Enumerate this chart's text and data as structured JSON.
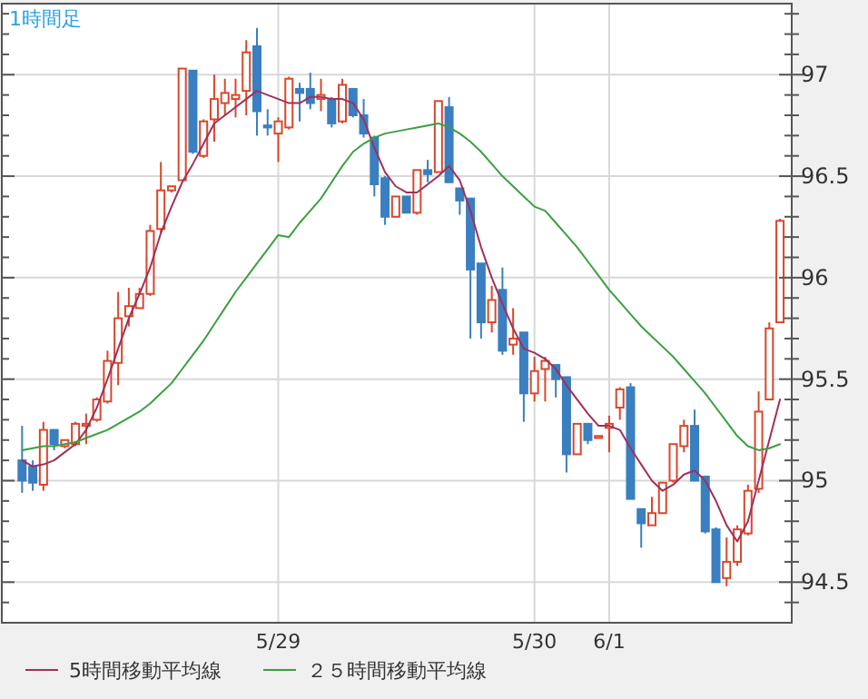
{
  "chart_data": {
    "type": "candlestick",
    "title": "1時間足",
    "categories": [
      null,
      null,
      null,
      null,
      null,
      null,
      null,
      null,
      null,
      null,
      null,
      null,
      null,
      null,
      null,
      null,
      null,
      null,
      null,
      null,
      null,
      null,
      null,
      null,
      "5/29",
      null,
      null,
      null,
      null,
      null,
      null,
      null,
      null,
      null,
      null,
      null,
      null,
      null,
      null,
      null,
      null,
      null,
      null,
      null,
      null,
      null,
      null,
      null,
      "5/30",
      null,
      null,
      null,
      null,
      null,
      null,
      "6/1",
      null,
      null,
      null,
      null,
      null,
      null,
      null,
      null,
      null,
      null,
      null,
      null,
      null,
      null,
      null,
      null
    ],
    "ohlc": [
      [
        95.1,
        95.27,
        94.94,
        95.0
      ],
      [
        95.07,
        95.1,
        94.95,
        94.99
      ],
      [
        94.98,
        95.29,
        94.95,
        95.25
      ],
      [
        95.25,
        95.25,
        95.15,
        95.18
      ],
      [
        95.17,
        95.2,
        95.16,
        95.2
      ],
      [
        95.18,
        95.29,
        95.17,
        95.28
      ],
      [
        95.27,
        95.33,
        95.18,
        95.28
      ],
      [
        95.3,
        95.41,
        95.29,
        95.4
      ],
      [
        95.39,
        95.64,
        95.38,
        95.59
      ],
      [
        95.58,
        95.93,
        95.47,
        95.8
      ],
      [
        95.81,
        95.95,
        95.76,
        95.86
      ],
      [
        95.85,
        95.95,
        95.85,
        95.92
      ],
      [
        95.92,
        96.26,
        95.91,
        96.23
      ],
      [
        96.24,
        96.57,
        96.22,
        96.43
      ],
      [
        96.43,
        96.45,
        96.42,
        96.45
      ],
      [
        96.48,
        97.03,
        96.48,
        97.03
      ],
      [
        97.02,
        97.02,
        96.61,
        96.62
      ],
      [
        96.6,
        96.78,
        96.59,
        96.77
      ],
      [
        96.78,
        97.0,
        96.67,
        96.88
      ],
      [
        96.86,
        96.98,
        96.8,
        96.91
      ],
      [
        96.88,
        96.98,
        96.79,
        96.9
      ],
      [
        96.92,
        97.17,
        96.8,
        97.11
      ],
      [
        97.14,
        97.23,
        96.7,
        96.82
      ],
      [
        96.75,
        96.83,
        96.7,
        96.74
      ],
      [
        96.71,
        96.79,
        96.57,
        96.77
      ],
      [
        96.74,
        96.99,
        96.73,
        96.98
      ],
      [
        96.93,
        96.96,
        96.77,
        96.91
      ],
      [
        96.93,
        97.01,
        96.83,
        96.86
      ],
      [
        96.88,
        96.98,
        96.82,
        96.9
      ],
      [
        96.88,
        96.89,
        96.74,
        96.76
      ],
      [
        96.77,
        96.98,
        96.76,
        96.95
      ],
      [
        96.93,
        96.93,
        96.79,
        96.8
      ],
      [
        96.8,
        96.88,
        96.69,
        96.71
      ],
      [
        96.69,
        96.7,
        96.4,
        96.46
      ],
      [
        96.49,
        96.5,
        96.26,
        96.3
      ],
      [
        96.3,
        96.4,
        96.3,
        96.4
      ],
      [
        96.4,
        96.4,
        96.32,
        96.32
      ],
      [
        96.32,
        96.53,
        96.31,
        96.53
      ],
      [
        96.53,
        96.58,
        96.47,
        96.51
      ],
      [
        96.52,
        96.87,
        96.52,
        96.87
      ],
      [
        96.84,
        96.89,
        96.47,
        96.47
      ],
      [
        96.44,
        96.44,
        96.31,
        96.38
      ],
      [
        96.39,
        96.39,
        95.7,
        96.04
      ],
      [
        96.07,
        96.07,
        95.7,
        95.78
      ],
      [
        95.78,
        95.96,
        95.73,
        95.89
      ],
      [
        95.94,
        96.05,
        95.62,
        95.64
      ],
      [
        95.67,
        95.85,
        95.62,
        95.7
      ],
      [
        95.73,
        95.73,
        95.29,
        95.43
      ],
      [
        95.43,
        95.61,
        95.39,
        95.54
      ],
      [
        95.55,
        95.61,
        95.39,
        95.59
      ],
      [
        95.57,
        95.57,
        95.41,
        95.5
      ],
      [
        95.51,
        95.51,
        95.04,
        95.13
      ],
      [
        95.13,
        95.28,
        95.13,
        95.28
      ],
      [
        95.28,
        95.28,
        95.18,
        95.2
      ],
      [
        95.21,
        95.22,
        95.21,
        95.22
      ],
      [
        95.26,
        95.32,
        95.14,
        95.28
      ],
      [
        95.36,
        95.46,
        95.3,
        95.45
      ],
      [
        95.46,
        95.48,
        94.91,
        94.91
      ],
      [
        94.86,
        94.86,
        94.67,
        94.79
      ],
      [
        94.78,
        94.92,
        94.78,
        94.84
      ],
      [
        94.84,
        94.99,
        94.84,
        94.99
      ],
      [
        95.0,
        95.18,
        94.99,
        95.18
      ],
      [
        95.17,
        95.3,
        95.14,
        95.27
      ],
      [
        95.27,
        95.35,
        95.0,
        95.0
      ],
      [
        95.02,
        95.02,
        94.74,
        94.75
      ],
      [
        94.76,
        94.77,
        94.5,
        94.5
      ],
      [
        94.52,
        94.72,
        94.48,
        94.6
      ],
      [
        94.6,
        94.78,
        94.58,
        94.76
      ],
      [
        94.74,
        94.98,
        94.73,
        94.95
      ],
      [
        94.96,
        95.44,
        94.94,
        95.34
      ],
      [
        95.4,
        95.78,
        95.4,
        95.75
      ],
      [
        95.78,
        96.29,
        95.78,
        96.28
      ]
    ],
    "colors": [
      "#3a7fc0",
      "#3a7fc0",
      "#d9472b",
      "#3a7fc0",
      "#d9472b",
      "#d9472b",
      "#d9472b",
      "#d9472b",
      "#d9472b",
      "#d9472b",
      "#d9472b",
      "#d9472b",
      "#d9472b",
      "#d9472b",
      "#d9472b",
      "#d9472b",
      "#3a7fc0",
      "#d9472b",
      "#d9472b",
      "#d9472b",
      "#d9472b",
      "#d9472b",
      "#3a7fc0",
      "#3a7fc0",
      "#d9472b",
      "#d9472b",
      "#3a7fc0",
      "#3a7fc0",
      "#d9472b",
      "#3a7fc0",
      "#d9472b",
      "#3a7fc0",
      "#3a7fc0",
      "#3a7fc0",
      "#3a7fc0",
      "#d9472b",
      "#3a7fc0",
      "#d9472b",
      "#3a7fc0",
      "#d9472b",
      "#3a7fc0",
      "#3a7fc0",
      "#3a7fc0",
      "#3a7fc0",
      "#d9472b",
      "#3a7fc0",
      "#d9472b",
      "#3a7fc0",
      "#d9472b",
      "#d9472b",
      "#3a7fc0",
      "#3a7fc0",
      "#d9472b",
      "#3a7fc0",
      "#d9472b",
      "#d9472b",
      "#d9472b",
      "#3a7fc0",
      "#3a7fc0",
      "#d9472b",
      "#d9472b",
      "#d9472b",
      "#d9472b",
      "#3a7fc0",
      "#3a7fc0",
      "#3a7fc0",
      "#d9472b",
      "#d9472b",
      "#d9472b",
      "#d9472b",
      "#d9472b",
      "#d9472b"
    ],
    "series": [
      {
        "name": "5時間移動平均線",
        "type": "line",
        "color": "#a0305a",
        "values": [
          95.1,
          95.07,
          95.08,
          95.1,
          95.14,
          95.18,
          95.25,
          95.36,
          95.5,
          95.65,
          95.8,
          95.92,
          96.05,
          96.22,
          96.35,
          96.47,
          96.56,
          96.66,
          96.76,
          96.8,
          96.84,
          96.88,
          96.92,
          96.9,
          96.88,
          96.86,
          96.86,
          96.89,
          96.89,
          96.88,
          96.88,
          96.86,
          96.78,
          96.64,
          96.52,
          96.45,
          96.42,
          96.42,
          96.46,
          96.5,
          96.55,
          96.48,
          96.33,
          96.15,
          96.0,
          95.87,
          95.75,
          95.65,
          95.63,
          95.6,
          95.55,
          95.47,
          95.4,
          95.33,
          95.27,
          95.27,
          95.25,
          95.16,
          95.08,
          95.0,
          94.95,
          94.98,
          95.03,
          95.05,
          95.0,
          94.9,
          94.78,
          94.7,
          94.8,
          95.0,
          95.2,
          95.4
        ]
      },
      {
        "name": "２５時間移動平均線",
        "type": "line",
        "color": "#3aa040",
        "values": [
          95.15,
          95.16,
          95.17,
          95.17,
          95.18,
          95.19,
          95.21,
          95.23,
          95.25,
          95.28,
          95.31,
          95.34,
          95.38,
          95.43,
          95.48,
          95.55,
          95.62,
          95.69,
          95.77,
          95.85,
          95.93,
          96.0,
          96.07,
          96.14,
          96.21,
          96.2,
          96.27,
          96.33,
          96.39,
          96.47,
          96.55,
          96.62,
          96.66,
          96.69,
          96.71,
          96.72,
          96.73,
          96.74,
          96.75,
          96.76,
          96.74,
          96.71,
          96.67,
          96.62,
          96.56,
          96.5,
          96.45,
          96.4,
          96.35,
          96.33,
          96.27,
          96.21,
          96.15,
          96.08,
          96.01,
          95.94,
          95.88,
          95.82,
          95.76,
          95.71,
          95.66,
          95.61,
          95.55,
          95.49,
          95.43,
          95.36,
          95.29,
          95.22,
          95.17,
          95.15,
          95.16,
          95.18
        ]
      }
    ],
    "ylim": [
      94.3,
      97.35
    ],
    "yticks": [
      {
        "value": 94.4,
        "label": null
      },
      94.5,
      {
        "value": 94.6,
        "label": null
      },
      {
        "value": 94.7,
        "label": null
      },
      {
        "value": 94.8,
        "label": null
      },
      {
        "value": 94.9,
        "label": null
      },
      95,
      {
        "value": 95.1,
        "label": null
      },
      {
        "value": 95.2,
        "label": null
      },
      {
        "value": 95.3,
        "label": null
      },
      {
        "value": 95.4,
        "label": null
      },
      95.5,
      {
        "value": 95.6,
        "label": null
      },
      {
        "value": 95.7,
        "label": null
      },
      {
        "value": 95.8,
        "label": null
      },
      {
        "value": 95.9,
        "label": null
      },
      96,
      {
        "value": 96.1,
        "label": null
      },
      {
        "value": 96.2,
        "label": null
      },
      {
        "value": 96.3,
        "label": null
      },
      {
        "value": 96.4,
        "label": null
      },
      96.5,
      {
        "value": 96.6,
        "label": null
      },
      {
        "value": 96.7,
        "label": null
      },
      {
        "value": 96.8,
        "label": null
      },
      {
        "value": 96.9,
        "label": null
      },
      97,
      {
        "value": 97.1,
        "label": null
      },
      {
        "value": 97.2,
        "label": null
      },
      {
        "value": 97.3,
        "label": null
      }
    ],
    "grid": true,
    "legend": "bottom"
  }
}
